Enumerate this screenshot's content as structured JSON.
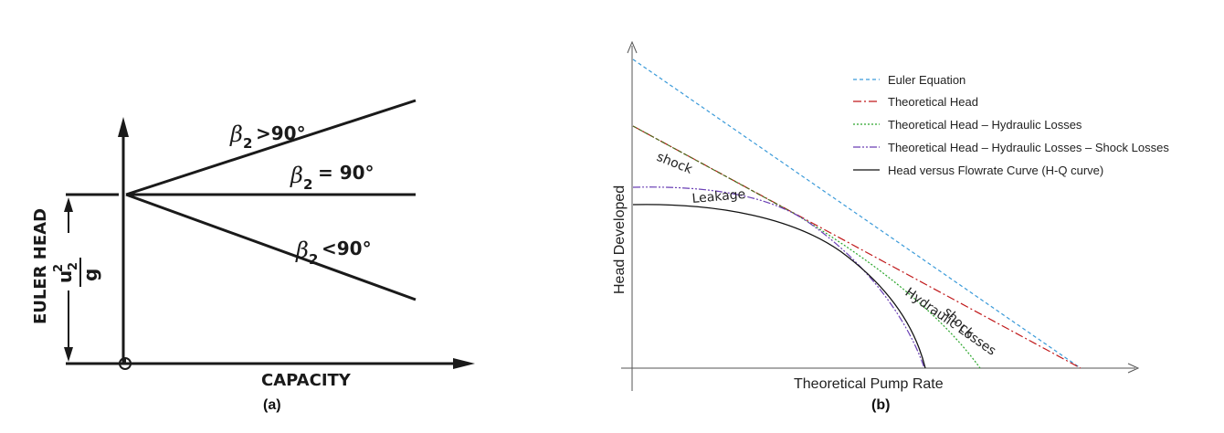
{
  "panel_a": {
    "caption": "(a)",
    "y_axis_label": "EULER HEAD",
    "y_quantity_num": "u",
    "y_quantity_sup": "2",
    "y_quantity_den": "g",
    "x_axis_label": "CAPACITY",
    "beta_symbol": "β",
    "beta_subscript": "2",
    "line_labels": [
      ">90°",
      "= 90°",
      "<90°"
    ]
  },
  "panel_b": {
    "caption": "(b)",
    "x_axis_label": "Theoretical Pump Rate",
    "y_axis_label": "Head Developed",
    "legend": [
      {
        "label": "Euler Equation",
        "color": "#3a9ad9",
        "dash": "dashed"
      },
      {
        "label": "Theoretical Head",
        "color": "#c0181a",
        "dash": "dashdot"
      },
      {
        "label": "Theoretical Head – Hydraulic Losses",
        "color": "#2aa52a",
        "dash": "dotted"
      },
      {
        "label": "Theoretical Head – Hydraulic Losses – Shock Losses",
        "color": "#6a3fb5",
        "dash": "dashdotdot"
      },
      {
        "label": "Head versus Flowrate Curve (H-Q curve)",
        "color": "#111111",
        "dash": "solid"
      }
    ],
    "curve_labels": {
      "shock_top": "shock",
      "leakage": "Leakage",
      "hydraulic_losses": "Hydraulic Losses",
      "shock_bottom": "shock"
    }
  }
}
